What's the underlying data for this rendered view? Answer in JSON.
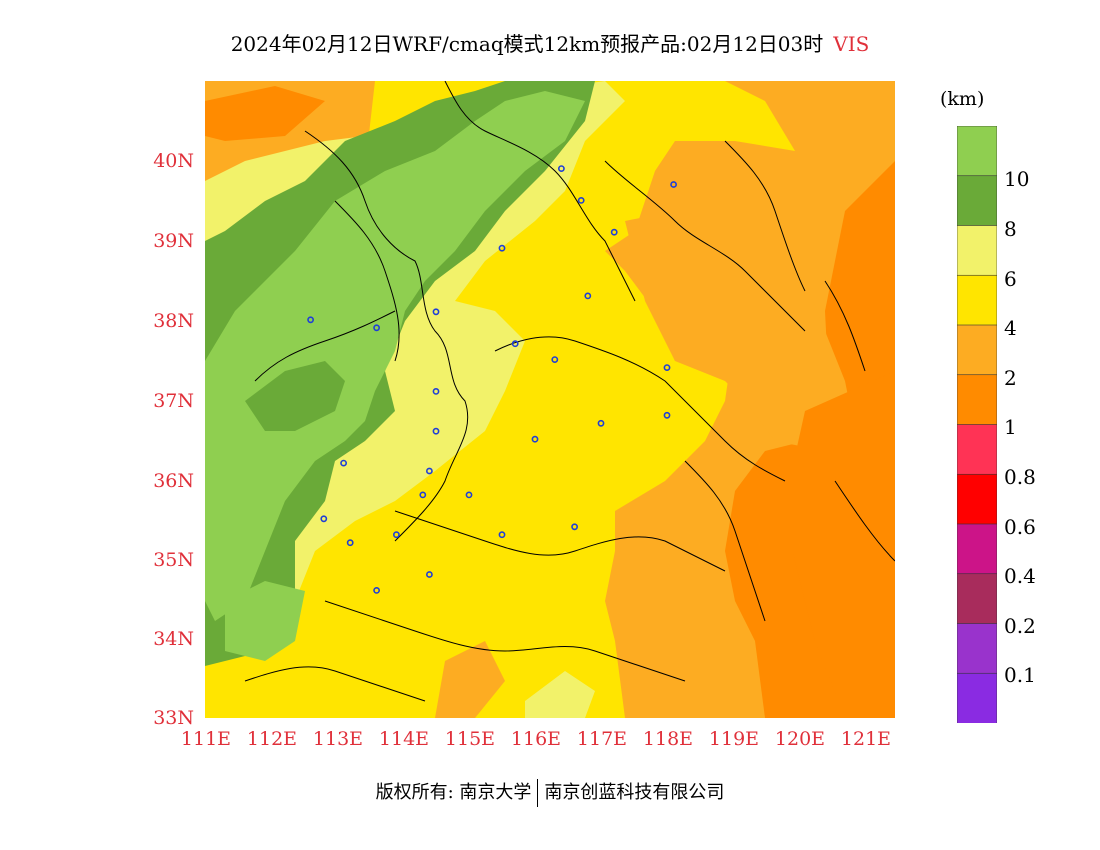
{
  "title": {
    "text": "2024年02月12日WRF/cmaq模式12km预报产品:02月12日03时",
    "variable": "VIS"
  },
  "axes": {
    "y_ticks": [
      "40N",
      "39N",
      "38N",
      "37N",
      "36N",
      "35N",
      "34N",
      "33N"
    ],
    "x_ticks": [
      "111E",
      "112E",
      "113E",
      "114E",
      "115E",
      "116E",
      "117E",
      "118E",
      "119E",
      "120E",
      "121E"
    ],
    "tick_color": "#e0303a"
  },
  "legend": {
    "unit": "(km)",
    "labels": [
      "10",
      "8",
      "6",
      "4",
      "2",
      "1",
      "0.8",
      "0.6",
      "0.4",
      "0.2",
      "0.1"
    ],
    "colors": [
      "#8fcf50",
      "#6aaa38",
      "#f2f26a",
      "#ffe500",
      "#fdac22",
      "#ff8b00",
      "#ff3355",
      "#ff0000",
      "#cc1488",
      "#a82c5c",
      "#9933cc",
      "#8a2be2"
    ]
  },
  "stations": [
    [
      112.6,
      38.0
    ],
    [
      113.6,
      37.9
    ],
    [
      114.5,
      38.1
    ],
    [
      115.5,
      38.9
    ],
    [
      116.4,
      39.9
    ],
    [
      116.7,
      39.5
    ],
    [
      117.2,
      39.1
    ],
    [
      118.1,
      39.7
    ],
    [
      116.8,
      38.3
    ],
    [
      115.7,
      37.7
    ],
    [
      116.3,
      37.5
    ],
    [
      114.5,
      37.1
    ],
    [
      114.5,
      36.6
    ],
    [
      113.1,
      36.2
    ],
    [
      114.4,
      36.1
    ],
    [
      114.3,
      35.8
    ],
    [
      115.0,
      35.8
    ],
    [
      116.0,
      36.5
    ],
    [
      117.0,
      36.7
    ],
    [
      118.0,
      37.4
    ],
    [
      118.0,
      36.8
    ],
    [
      112.8,
      35.5
    ],
    [
      113.2,
      35.2
    ],
    [
      113.9,
      35.3
    ],
    [
      115.5,
      35.3
    ],
    [
      116.6,
      35.4
    ],
    [
      114.4,
      34.8
    ],
    [
      113.6,
      34.6
    ]
  ],
  "copyright": {
    "left": "版权所有: 南京大学",
    "right": "南京创蓝科技有限公司"
  }
}
